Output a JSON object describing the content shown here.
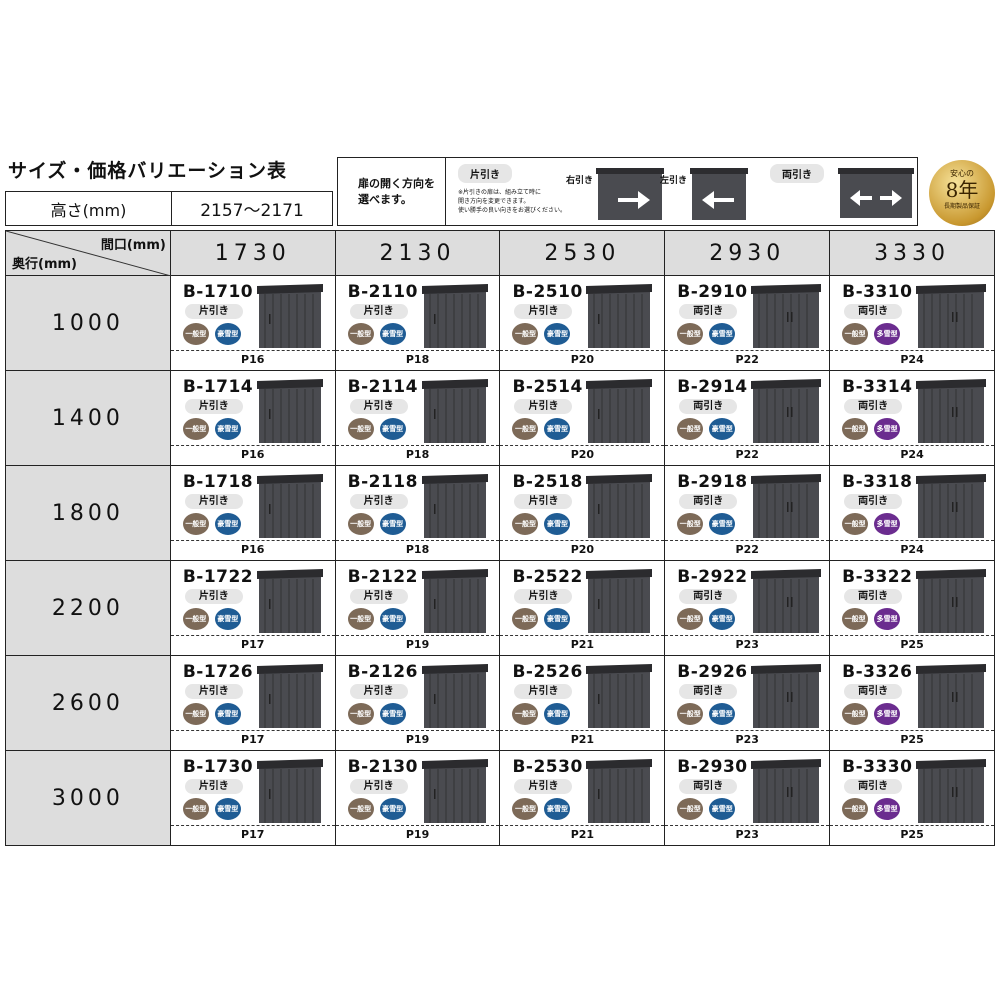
{
  "title": "サイズ・価格バリエーション表",
  "height": {
    "label": "高さ(mm)",
    "value": "2157〜2171"
  },
  "door": {
    "lead": "扉の開く方向を\n選べます。",
    "single": "片引き",
    "note": "※片引きの扉は、組み立て時に\n開き方向を変更できます。\n使い勝手の良い向きをお選びください。",
    "right": "右引き",
    "left": "左引き",
    "double": "両引き"
  },
  "seal": {
    "line1": "安心の",
    "line2": "8年",
    "line3": "長期製品保証"
  },
  "corner": {
    "width_label": "間口(mm)",
    "depth_label": "奥行(mm)"
  },
  "widths": [
    "1730",
    "2130",
    "2530",
    "2930",
    "3330"
  ],
  "badges": {
    "general": "一般型",
    "heavy": "豪雪型",
    "multi": "多雪型"
  },
  "colors": {
    "general": "#7d6a58",
    "heavy": "#1f5c94",
    "multi": "#6b2c8f",
    "header_bg": "#dddddd",
    "shed": "#4a4b50"
  },
  "rows": [
    {
      "depth": "1000",
      "cells": [
        {
          "code": "B-1710",
          "dir": "片引き",
          "b2": "heavy",
          "page": "P16"
        },
        {
          "code": "B-2110",
          "dir": "片引き",
          "b2": "heavy",
          "page": "P18"
        },
        {
          "code": "B-2510",
          "dir": "片引き",
          "b2": "heavy",
          "page": "P20"
        },
        {
          "code": "B-2910",
          "dir": "両引き",
          "b2": "heavy",
          "page": "P22"
        },
        {
          "code": "B-3310",
          "dir": "両引き",
          "b2": "multi",
          "page": "P24"
        }
      ]
    },
    {
      "depth": "1400",
      "cells": [
        {
          "code": "B-1714",
          "dir": "片引き",
          "b2": "heavy",
          "page": "P16"
        },
        {
          "code": "B-2114",
          "dir": "片引き",
          "b2": "heavy",
          "page": "P18"
        },
        {
          "code": "B-2514",
          "dir": "片引き",
          "b2": "heavy",
          "page": "P20"
        },
        {
          "code": "B-2914",
          "dir": "両引き",
          "b2": "heavy",
          "page": "P22"
        },
        {
          "code": "B-3314",
          "dir": "両引き",
          "b2": "multi",
          "page": "P24"
        }
      ]
    },
    {
      "depth": "1800",
      "cells": [
        {
          "code": "B-1718",
          "dir": "片引き",
          "b2": "heavy",
          "page": "P16"
        },
        {
          "code": "B-2118",
          "dir": "片引き",
          "b2": "heavy",
          "page": "P18"
        },
        {
          "code": "B-2518",
          "dir": "片引き",
          "b2": "heavy",
          "page": "P20"
        },
        {
          "code": "B-2918",
          "dir": "両引き",
          "b2": "heavy",
          "page": "P22"
        },
        {
          "code": "B-3318",
          "dir": "両引き",
          "b2": "multi",
          "page": "P24"
        }
      ]
    },
    {
      "depth": "2200",
      "cells": [
        {
          "code": "B-1722",
          "dir": "片引き",
          "b2": "heavy",
          "page": "P17"
        },
        {
          "code": "B-2122",
          "dir": "片引き",
          "b2": "heavy",
          "page": "P19"
        },
        {
          "code": "B-2522",
          "dir": "片引き",
          "b2": "heavy",
          "page": "P21"
        },
        {
          "code": "B-2922",
          "dir": "両引き",
          "b2": "heavy",
          "page": "P23"
        },
        {
          "code": "B-3322",
          "dir": "両引き",
          "b2": "multi",
          "page": "P25"
        }
      ]
    },
    {
      "depth": "2600",
      "cells": [
        {
          "code": "B-1726",
          "dir": "片引き",
          "b2": "heavy",
          "page": "P17"
        },
        {
          "code": "B-2126",
          "dir": "片引き",
          "b2": "heavy",
          "page": "P19"
        },
        {
          "code": "B-2526",
          "dir": "片引き",
          "b2": "heavy",
          "page": "P21"
        },
        {
          "code": "B-2926",
          "dir": "両引き",
          "b2": "heavy",
          "page": "P23"
        },
        {
          "code": "B-3326",
          "dir": "両引き",
          "b2": "multi",
          "page": "P25"
        }
      ]
    },
    {
      "depth": "3000",
      "cells": [
        {
          "code": "B-1730",
          "dir": "片引き",
          "b2": "heavy",
          "page": "P17"
        },
        {
          "code": "B-2130",
          "dir": "片引き",
          "b2": "heavy",
          "page": "P19"
        },
        {
          "code": "B-2530",
          "dir": "片引き",
          "b2": "heavy",
          "page": "P21"
        },
        {
          "code": "B-2930",
          "dir": "両引き",
          "b2": "heavy",
          "page": "P23"
        },
        {
          "code": "B-3330",
          "dir": "両引き",
          "b2": "multi",
          "page": "P25"
        }
      ]
    }
  ]
}
